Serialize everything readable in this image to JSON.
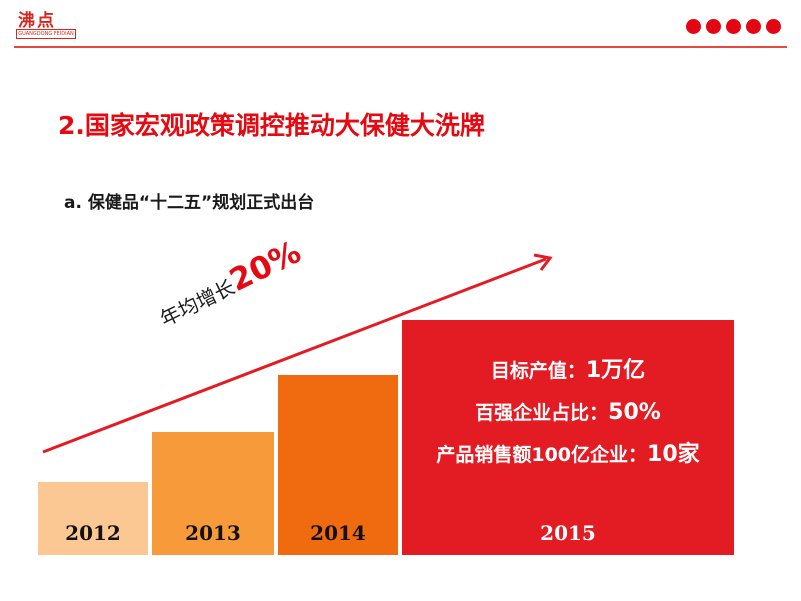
{
  "logo": {
    "name": "沸点",
    "tagline": "GUANGDONG FEIDIAN"
  },
  "header": {
    "dot_count": 5
  },
  "title": "2.国家宏观政策调控推动大保健大洗牌",
  "subtitle": "a. 保健品“十二五”规划正式出台",
  "growth": {
    "label": "年均增长",
    "value": "20%"
  },
  "bars": [
    {
      "year": "2012",
      "color": "#fbc893"
    },
    {
      "year": "2013",
      "color": "#f79a3a"
    },
    {
      "year": "2014",
      "color": "#f06a10"
    },
    {
      "year": "2015",
      "color": "#e31b23"
    }
  ],
  "targets": [
    {
      "label": "目标产值：",
      "value": "1万亿"
    },
    {
      "label": "百强企业占比：",
      "value": "50%"
    },
    {
      "label": "产品销售额100亿企业：",
      "value": "10家"
    }
  ],
  "colors": {
    "accent": "#e50a12",
    "arrow": "#e31b23"
  }
}
